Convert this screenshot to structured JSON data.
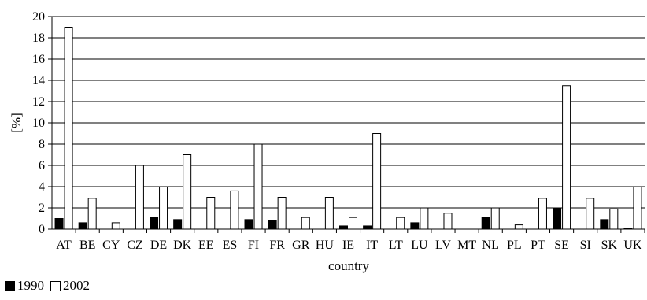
{
  "chart_data": {
    "type": "bar",
    "title": "",
    "xlabel": "country",
    "ylabel": "[%]",
    "ylim": [
      0,
      20
    ],
    "yticks": [
      0,
      2,
      4,
      6,
      8,
      10,
      12,
      14,
      16,
      18,
      20
    ],
    "grid": true,
    "legend_position": "bottom-left",
    "categories": [
      "AT",
      "BE",
      "CY",
      "CZ",
      "DE",
      "DK",
      "EE",
      "ES",
      "FI",
      "FR",
      "GR",
      "HU",
      "IE",
      "IT",
      "LT",
      "LU",
      "LV",
      "MT",
      "NL",
      "PL",
      "PT",
      "SE",
      "SI",
      "SK",
      "UK"
    ],
    "series": [
      {
        "name": "1990",
        "color": "#000000",
        "values": [
          1.0,
          0.6,
          0.0,
          0.0,
          1.1,
          0.9,
          0.0,
          0.0,
          0.9,
          0.8,
          0.0,
          0.0,
          0.3,
          0.3,
          0.0,
          0.6,
          0.0,
          0.0,
          1.1,
          0.0,
          0.0,
          2.0,
          0.0,
          0.9,
          0.1
        ]
      },
      {
        "name": "2002",
        "color": "#ffffff",
        "values": [
          19.0,
          2.9,
          0.6,
          6.0,
          4.0,
          7.0,
          3.0,
          3.6,
          8.0,
          3.0,
          1.1,
          3.0,
          1.1,
          9.0,
          1.1,
          2.0,
          1.5,
          0.0,
          2.0,
          0.4,
          2.9,
          13.5,
          2.9,
          1.9,
          4.0
        ]
      }
    ]
  }
}
